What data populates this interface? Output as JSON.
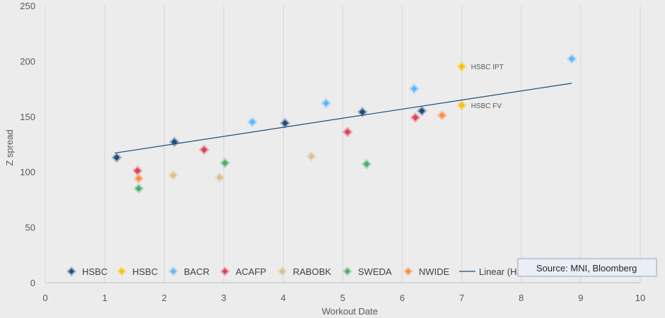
{
  "chart_data": {
    "type": "scatter",
    "xlabel": "Workout Date",
    "ylabel": "Z spread",
    "xlim": [
      0,
      10
    ],
    "ylim": [
      0,
      250
    ],
    "x_ticks": [
      0,
      1,
      2,
      3,
      4,
      5,
      6,
      7,
      8,
      9,
      10
    ],
    "y_ticks": [
      0,
      50,
      100,
      150,
      200,
      250
    ],
    "grid": "vertical",
    "legend_placement": "bottom",
    "series": [
      {
        "name": "HSBC",
        "color": "#1f4e79",
        "points": [
          [
            1.2,
            113
          ],
          [
            2.17,
            127
          ],
          [
            4.03,
            144
          ],
          [
            5.33,
            154
          ],
          [
            6.33,
            155
          ]
        ]
      },
      {
        "name": "HSBC",
        "color": "#ffc000",
        "points": [
          [
            7.0,
            195
          ],
          [
            7.0,
            160
          ]
        ]
      },
      {
        "name": "BACR",
        "color": "#5bb8ff",
        "points": [
          [
            3.48,
            145
          ],
          [
            4.72,
            162
          ],
          [
            6.2,
            175
          ],
          [
            8.85,
            202
          ]
        ]
      },
      {
        "name": "ACAFP",
        "color": "#e0405a",
        "points": [
          [
            1.55,
            101
          ],
          [
            2.67,
            120
          ],
          [
            5.08,
            136
          ],
          [
            6.22,
            149
          ]
        ]
      },
      {
        "name": "RABOBK",
        "color": "#dcc08c",
        "points": [
          [
            2.15,
            97
          ],
          [
            2.93,
            95
          ],
          [
            4.47,
            114
          ]
        ]
      },
      {
        "name": "SWEDA",
        "color": "#4caf6a",
        "points": [
          [
            1.57,
            85
          ],
          [
            3.02,
            108
          ],
          [
            5.4,
            107
          ]
        ]
      },
      {
        "name": "NWIDE",
        "color": "#ff8c42",
        "points": [
          [
            1.57,
            94
          ],
          [
            6.67,
            151
          ]
        ]
      }
    ],
    "trendline": {
      "name": "Linear (HSBC)",
      "color": "#1f4e79",
      "from": [
        1.17,
        117
      ],
      "to": [
        8.85,
        180
      ]
    },
    "annotations": [
      {
        "text": "HSBC IPT",
        "x": 7.0,
        "y": 195
      },
      {
        "text": "HSBC FV",
        "x": 7.0,
        "y": 160
      }
    ],
    "source_note": "Source: MNI, Bloomberg"
  }
}
